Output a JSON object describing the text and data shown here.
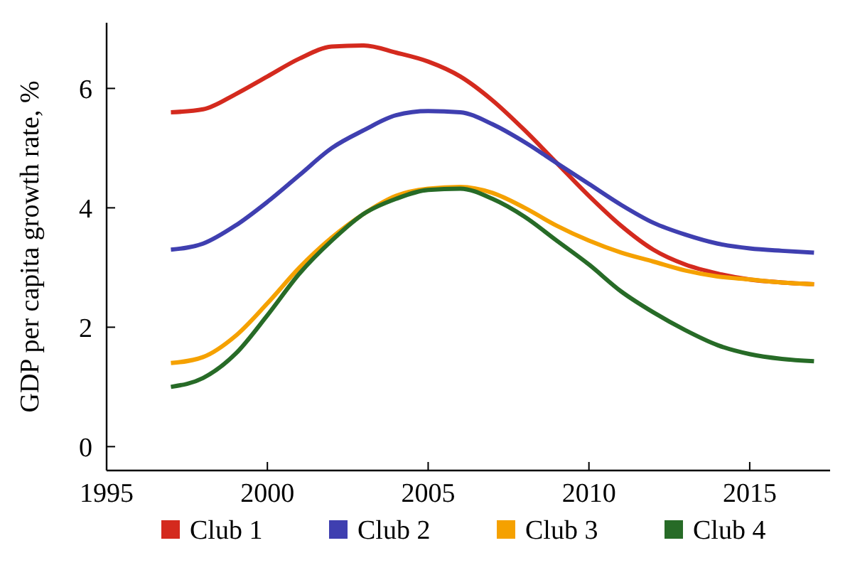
{
  "chart_data": {
    "type": "line",
    "ylabel": "GDP per capita growth rate, %",
    "x": [
      1997,
      1998,
      1999,
      2000,
      2001,
      2002,
      2003,
      2004,
      2005,
      2006,
      2007,
      2008,
      2009,
      2010,
      2011,
      2012,
      2013,
      2014,
      2015,
      2016,
      2017
    ],
    "xlim": [
      1995,
      2017.5
    ],
    "xticks": [
      1995,
      2000,
      2005,
      2010,
      2015
    ],
    "ylim": [
      -0.4,
      7.1
    ],
    "yticks": [
      0,
      2,
      4,
      6
    ],
    "legend": "bottom",
    "grid": false,
    "series": [
      {
        "name": "Club 1",
        "color": "#d42a1e",
        "values": [
          5.6,
          5.65,
          5.9,
          6.2,
          6.5,
          6.7,
          6.72,
          6.6,
          6.45,
          6.2,
          5.8,
          5.3,
          4.75,
          4.2,
          3.7,
          3.3,
          3.05,
          2.9,
          2.8,
          2.75,
          2.72
        ]
      },
      {
        "name": "Club 2",
        "color": "#3f3fb0",
        "values": [
          3.3,
          3.4,
          3.7,
          4.1,
          4.55,
          5.0,
          5.3,
          5.55,
          5.62,
          5.6,
          5.4,
          5.1,
          4.75,
          4.4,
          4.05,
          3.75,
          3.55,
          3.4,
          3.32,
          3.28,
          3.25
        ]
      },
      {
        "name": "Club 3",
        "color": "#f5a100",
        "values": [
          1.4,
          1.5,
          1.85,
          2.4,
          3.0,
          3.5,
          3.9,
          4.2,
          4.32,
          4.35,
          4.25,
          4.0,
          3.7,
          3.45,
          3.25,
          3.1,
          2.95,
          2.85,
          2.8,
          2.75,
          2.72
        ]
      },
      {
        "name": "Club 4",
        "color": "#276b27",
        "values": [
          1.0,
          1.15,
          1.55,
          2.2,
          2.9,
          3.45,
          3.9,
          4.15,
          4.3,
          4.32,
          4.15,
          3.85,
          3.45,
          3.05,
          2.6,
          2.25,
          1.95,
          1.7,
          1.55,
          1.47,
          1.43
        ]
      }
    ]
  }
}
